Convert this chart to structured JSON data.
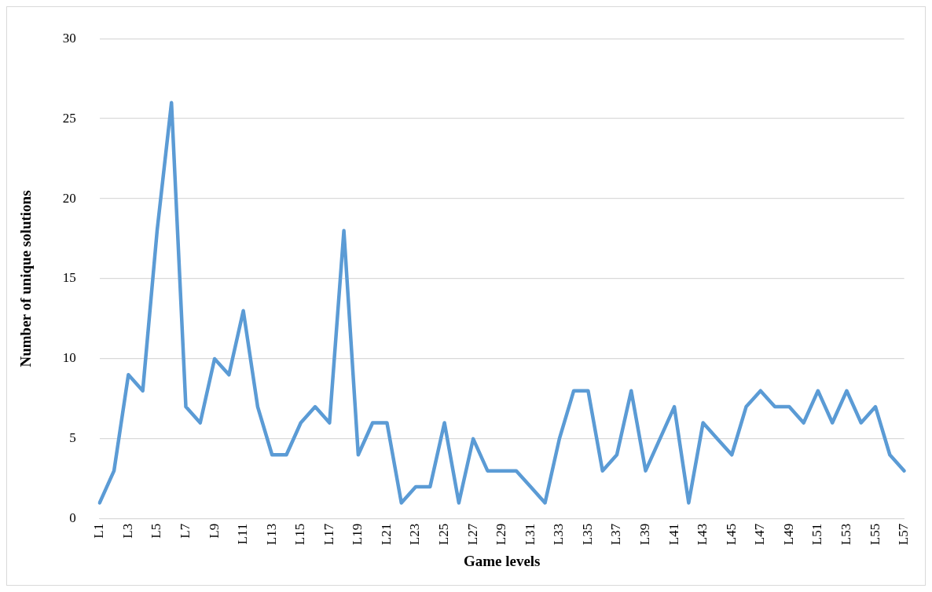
{
  "chart_data": {
    "type": "line",
    "xlabel": "Game levels",
    "ylabel": "Number of unique solutions",
    "categories": [
      "L1",
      null,
      "L3",
      null,
      "L5",
      null,
      "L7",
      null,
      "L9",
      null,
      "L11",
      null,
      "L13",
      null,
      "L15",
      null,
      "L17",
      null,
      "L19",
      null,
      "L21",
      null,
      "L23",
      null,
      "L25",
      null,
      "L27",
      null,
      "L29",
      null,
      "L31",
      null,
      "L33",
      null,
      "L35",
      null,
      "L37",
      null,
      "L39",
      null,
      "L41",
      null,
      "L43",
      null,
      "L45",
      null,
      "L47",
      null,
      "L49",
      null,
      "L51",
      null,
      "L53",
      null,
      "L55",
      null,
      "L57"
    ],
    "series": [
      {
        "color": "#5b9bd5",
        "values": [
          1,
          3,
          9,
          8,
          18,
          26,
          7,
          6,
          10,
          9,
          13,
          7,
          4,
          4,
          6,
          7,
          6,
          18,
          4,
          6,
          6,
          1,
          2,
          2,
          6,
          1,
          5,
          3,
          3,
          3,
          2,
          1,
          5,
          8,
          8,
          3,
          4,
          8,
          3,
          5,
          7,
          1,
          6,
          5,
          4,
          7,
          8,
          7,
          7,
          6,
          8,
          6,
          8,
          6,
          7,
          4,
          3
        ]
      }
    ],
    "ylim": [
      0,
      30
    ],
    "yticks": [
      0,
      5,
      10,
      15,
      20,
      25,
      30
    ],
    "grid": "y",
    "legend": false,
    "marker": "none",
    "line_style": "solid"
  }
}
